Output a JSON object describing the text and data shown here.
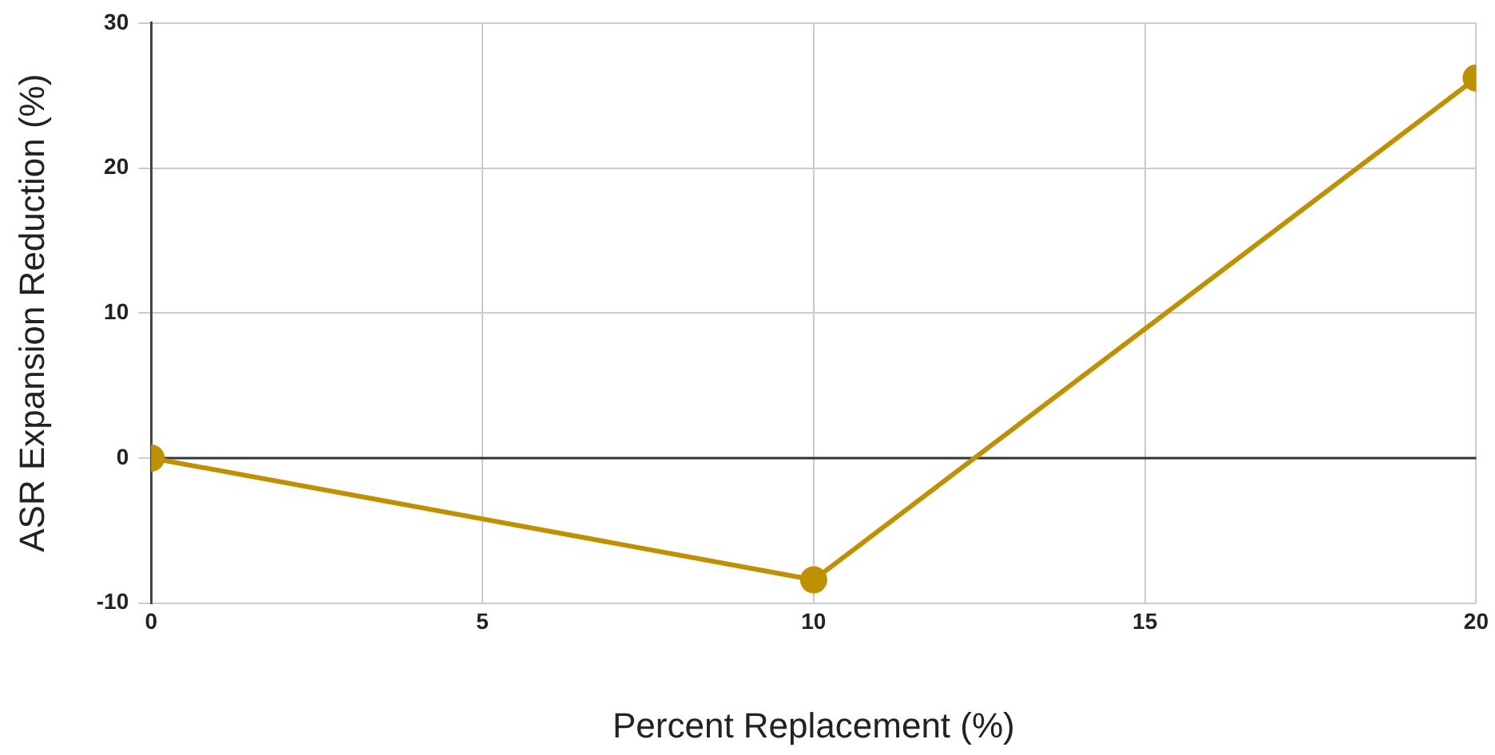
{
  "chart_data": {
    "type": "line",
    "xlabel": "Percent Replacement (%)",
    "ylabel": "ASR Expansion Reduction (%)",
    "x": [
      0,
      10,
      20
    ],
    "series": [
      {
        "color": "#bf9000",
        "values": [
          0,
          -8.4,
          26.2
        ]
      }
    ],
    "xlim": [
      0,
      20
    ],
    "xticks": [
      0,
      5,
      10,
      15,
      20
    ],
    "ylim": [
      -10,
      30
    ],
    "yticks": [
      -10,
      0,
      10,
      20,
      30
    ],
    "grid": true,
    "legend": false,
    "marker": "circle",
    "line_style": "solid",
    "ref_lines": [
      {
        "axis": "y",
        "value": 0,
        "color": "#333333"
      }
    ]
  }
}
